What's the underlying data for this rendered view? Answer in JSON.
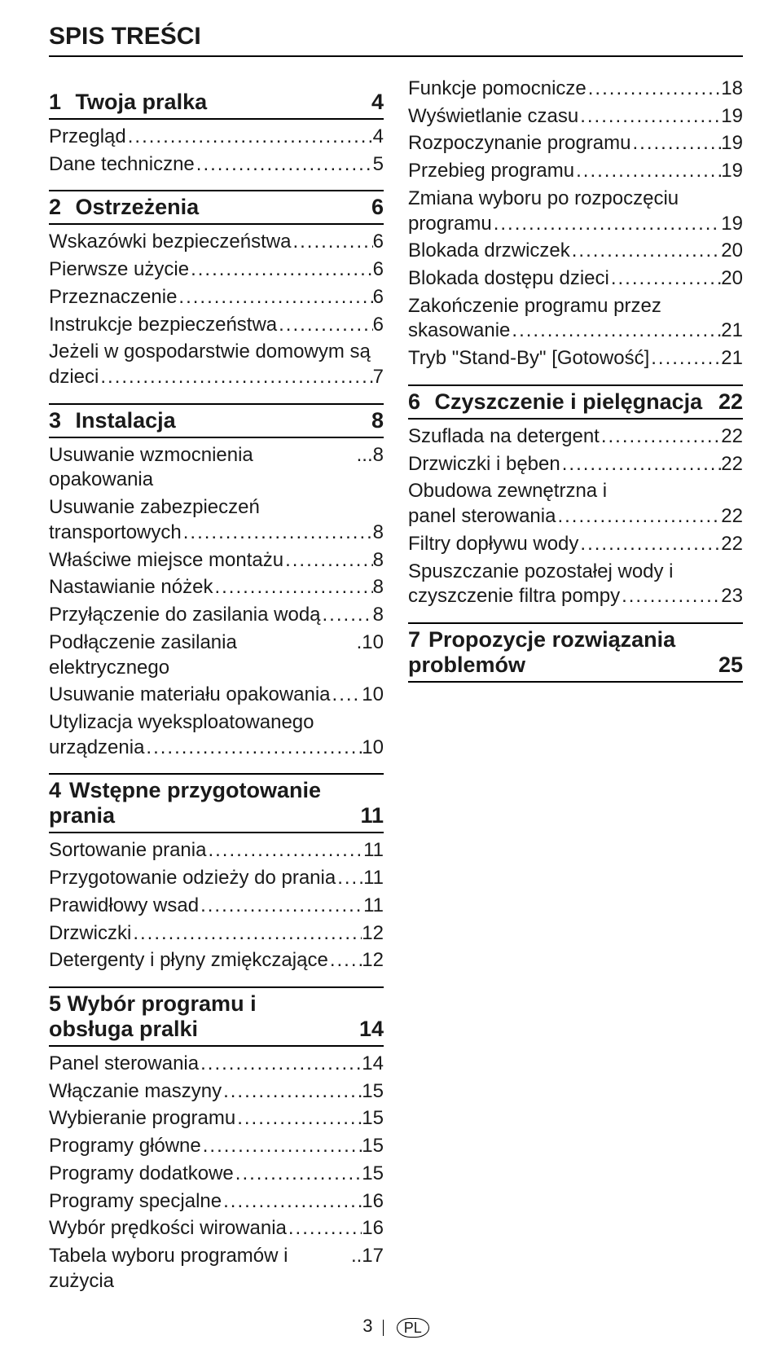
{
  "title": "SPIS TREŚCI",
  "leader_dots": "..........................................................................................",
  "footer": {
    "page_number": "3",
    "lang_badge": "PL"
  },
  "left": {
    "s1": {
      "num": "1",
      "title": "Twoja pralka",
      "page": "4",
      "items": [
        {
          "label": "Przegląd",
          "page": "4"
        },
        {
          "label": "Dane techniczne",
          "page": "5"
        }
      ]
    },
    "s2": {
      "num": "2",
      "title": "Ostrzeżenia",
      "page": "6",
      "items": [
        {
          "label": "Wskazówki bezpieczeństwa",
          "page": "6"
        },
        {
          "label": "Pierwsze użycie",
          "page": "6"
        },
        {
          "label": "Przeznaczenie",
          "page": "6"
        },
        {
          "label": "Instrukcje bezpieczeństwa",
          "page": "6"
        },
        {
          "label1": "Jeżeli w gospodarstwie domowym są",
          "label2": "dzieci",
          "page": "7",
          "multi": true
        }
      ]
    },
    "s3": {
      "num": "3",
      "title": "Instalacja",
      "page": "8",
      "items": [
        {
          "label": "Usuwanie wzmocnienia opakowania",
          "page": "8",
          "tight": true
        },
        {
          "label1": "Usuwanie zabezpieczeń",
          "label2": "transportowych",
          "page": "8",
          "multi": true
        },
        {
          "label": "Właściwe miejsce montażu",
          "page": "8"
        },
        {
          "label": "Nastawianie nóżek",
          "page": "8"
        },
        {
          "label": "Przyłączenie do zasilania wodą",
          "page": "8"
        },
        {
          "label": "Podłączenie zasilania elektrycznego",
          "page": "10",
          "sep": " .",
          "tight": true
        },
        {
          "label": "Usuwanie materiału opakowania",
          "page": "10"
        },
        {
          "label1": "Utylizacja wyeksploatowanego",
          "label2": "urządzenia",
          "page": "10",
          "multi": true
        }
      ]
    },
    "s4": {
      "num": "4",
      "title": "Wstępne przygotowanie prania",
      "page": "11",
      "items": [
        {
          "label": "Sortowanie prania",
          "page": "11"
        },
        {
          "label": "Przygotowanie odzieży do prania",
          "page": "11"
        },
        {
          "label": "Prawidłowy wsad",
          "page": "11"
        },
        {
          "label": "Drzwiczki",
          "page": "12"
        },
        {
          "label": "Detergenty i płyny zmiękczające",
          "page": "12"
        }
      ]
    },
    "s5": {
      "num": "5",
      "title": "Wybór programu i obsługa pralki",
      "page": "14",
      "tightnum": true,
      "items": [
        {
          "label": "Panel sterowania",
          "page": "14"
        },
        {
          "label": "Włączanie maszyny",
          "page": "15"
        },
        {
          "label": "Wybieranie programu",
          "page": "15"
        },
        {
          "label": "Programy główne",
          "page": "15",
          "trailspace": true
        },
        {
          "label": "Programy dodatkowe",
          "page": "15",
          "trailspace": true
        },
        {
          "label": "Programy specjalne",
          "page": "16"
        },
        {
          "label": "Wybór prędkości wirowania",
          "page": "16"
        },
        {
          "label": "Tabela wyboru programów i zużycia",
          "page": "17",
          "sep": "..",
          "tight": true
        }
      ]
    }
  },
  "right": {
    "s5cont": {
      "items": [
        {
          "label": "Funkcje pomocnicze",
          "page": "18"
        },
        {
          "label": "Wyświetlanie czasu",
          "page": "19"
        },
        {
          "label": "Rozpoczynanie programu",
          "page": "19"
        },
        {
          "label": "Przebieg programu",
          "page": "19"
        },
        {
          "label1": "Zmiana wyboru po rozpoczęciu",
          "label2": "programu",
          "page": "19",
          "multi": true
        },
        {
          "label": "Blokada drzwiczek",
          "page": "20"
        },
        {
          "label": "Blokada dostępu dzieci",
          "page": "20"
        },
        {
          "label1": "Zakończenie programu przez",
          "label2": "skasowanie",
          "page": "21",
          "multi": true
        },
        {
          "label": "Tryb \"Stand-By\" [Gotowość]",
          "page": "21"
        }
      ]
    },
    "s6": {
      "num": "6",
      "title": "Czyszczenie i pielęgnacja",
      "page": "22",
      "items": [
        {
          "label": "Szuflada na detergent",
          "page": "22"
        },
        {
          "label": "Drzwiczki i bęben",
          "page": "22"
        },
        {
          "label1": "Obudowa zewnętrzna i",
          "label2": "panel sterowania",
          "page": "22",
          "multi": true
        },
        {
          "label": "Filtry dopływu wody",
          "page": "22"
        },
        {
          "label1": "Spuszczanie pozostałej wody i",
          "label2": "czyszczenie filtra pompy",
          "page": "23",
          "multi": true
        }
      ]
    },
    "s7": {
      "num": "7",
      "title": "Propozycje rozwiązania problemów",
      "page": "25"
    }
  }
}
